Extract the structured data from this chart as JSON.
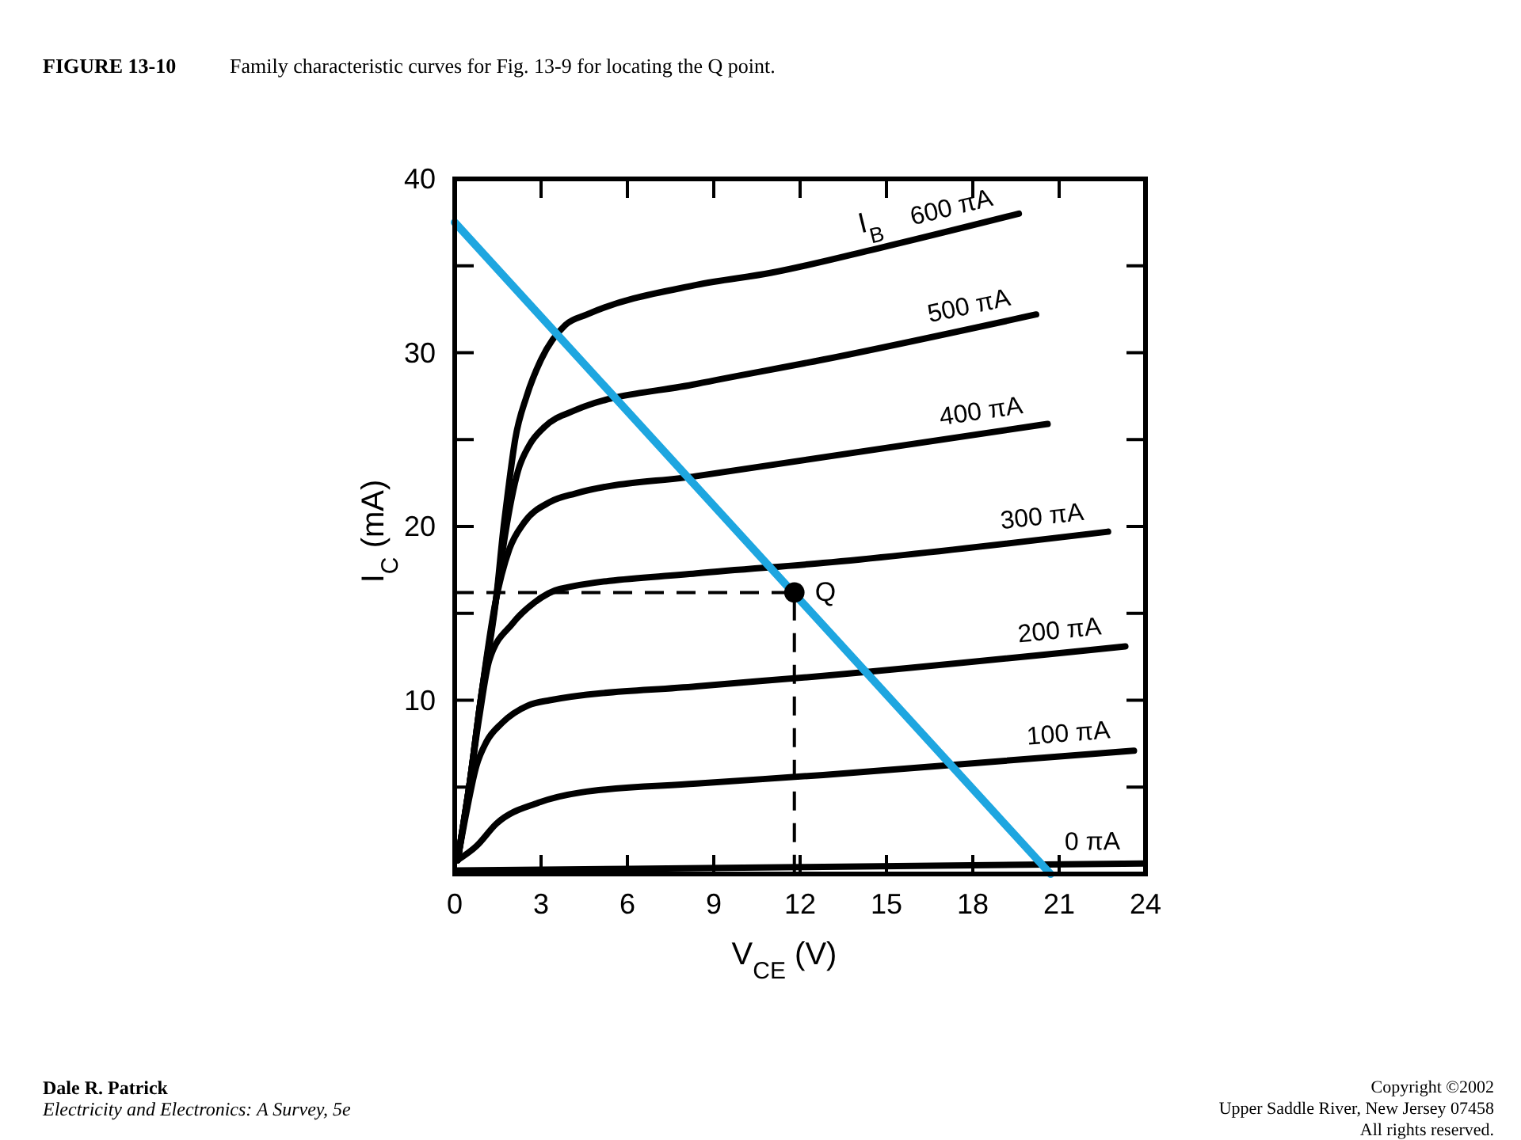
{
  "chart_data": {
    "type": "line",
    "title": "FIGURE 13-10",
    "subtitle": "Family characteristic curves for Fig. 13-9 for locating the Q point.",
    "xlabel": "V$_{CE}$ (V)",
    "ylabel": "I$_{C}$ (mA)",
    "legend_title": "I$_{B}$",
    "xlim": [
      0,
      24
    ],
    "xticks": [
      0,
      3,
      6,
      9,
      12,
      15,
      18,
      21,
      24
    ],
    "ylim": [
      0,
      40
    ],
    "yticks": [
      {
        "value": 5,
        "label": null
      },
      10,
      {
        "value": 15,
        "label": null
      },
      20,
      {
        "value": 25,
        "label": null
      },
      30,
      {
        "value": 35,
        "label": null
      },
      40
    ],
    "series": [
      {
        "name": "600 πA",
        "color": "#000000",
        "x": [
          0.1,
          0.5,
          0.9,
          1.45,
          1.7,
          1.85,
          2.1,
          2.5,
          3.0,
          3.85,
          4.6,
          8.4,
          11,
          14.7,
          19.6
        ],
        "values": [
          0.8,
          5,
          10,
          16,
          20,
          22,
          25,
          27.5,
          29.6,
          31.6,
          32.2,
          33.9,
          34.6,
          36,
          38
        ]
      },
      {
        "name": "500 πA",
        "color": "#000000",
        "x": [
          0.1,
          0.5,
          0.9,
          1.45,
          1.75,
          2.2,
          2.6,
          3.1,
          4.2,
          8.4,
          12.8,
          20.2
        ],
        "values": [
          0.8,
          5,
          10,
          16,
          19.5,
          23.2,
          24.7,
          25.7,
          26.7,
          28.2,
          29.6,
          32.2
        ]
      },
      {
        "name": "400 πA",
        "color": "#000000",
        "x": [
          0.1,
          0.5,
          0.9,
          1.4,
          1.9,
          2.4,
          3.3,
          4.2,
          8.4,
          20.6
        ],
        "values": [
          0.8,
          5,
          10,
          15.5,
          18.7,
          20.2,
          21.4,
          21.9,
          22.9,
          25.9
        ]
      },
      {
        "name": "300 πA",
        "color": "#000000",
        "x": [
          0.1,
          0.5,
          0.85,
          1.2,
          2.0,
          2.75,
          3.65,
          8.4,
          12.8,
          22.7
        ],
        "values": [
          0.8,
          5,
          9,
          12.3,
          14.4,
          15.6,
          16.4,
          17.3,
          17.9,
          19.7
        ]
      },
      {
        "name": "200 πA",
        "color": "#000000",
        "x": [
          0.1,
          0.4,
          0.75,
          1.1,
          1.65,
          2.55,
          3.3,
          8.4,
          12.8,
          23.3
        ],
        "values": [
          0.8,
          3.5,
          6.2,
          7.6,
          8.7,
          9.7,
          10,
          10.8,
          11.4,
          13.1
        ]
      },
      {
        "name": "100 πA",
        "color": "#000000",
        "x": [
          0.1,
          0.75,
          1.45,
          2.9,
          4.4,
          8.4,
          12.8,
          23.6
        ],
        "values": [
          0.8,
          1.6,
          2.9,
          4.1,
          4.7,
          5.2,
          5.7,
          7.1
        ]
      },
      {
        "name": "0 πA",
        "color": "#000000",
        "x": [
          0.1,
          12,
          23.9
        ],
        "values": [
          0.2,
          0.4,
          0.6
        ]
      },
      {
        "color": "#1ea6e0",
        "x": [
          0,
          20.7
        ],
        "values": [
          37.5,
          0
        ]
      },
      {
        "color": "#000000",
        "line_style": "dashed",
        "x": [
          0,
          11.8,
          11.8
        ],
        "values": [
          16.2,
          16.2,
          0
        ]
      },
      {
        "type": "scatter",
        "name": "Q",
        "color": "#000000",
        "marker": "circle",
        "x": [
          11.8
        ],
        "values": [
          16.2
        ]
      }
    ],
    "annotations": [
      "Dale R. Patrick",
      "Electricity and Electronics: A Survey, 5e",
      "Copyright ©2002",
      "Upper Saddle River, New Jersey 07458",
      "All rights reserved."
    ]
  }
}
